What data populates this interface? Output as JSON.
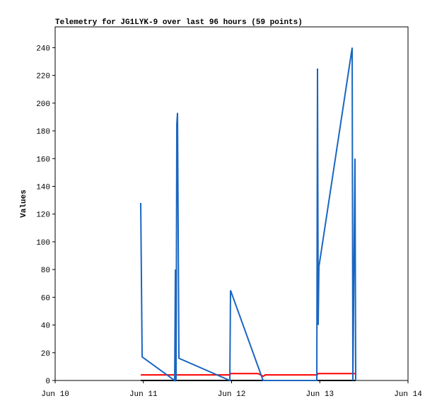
{
  "chart_data": {
    "type": "line",
    "title": "Telemetry for JG1LYK-9 over last 96 hours (59 points)",
    "y_label": "Values",
    "xlim": [
      0,
      4
    ],
    "xticks": [
      {
        "value": 0,
        "label": "Jun 10"
      },
      {
        "value": 1,
        "label": "Jun 11"
      },
      {
        "value": 2,
        "label": "Jun 12"
      },
      {
        "value": 3,
        "label": "Jun 13"
      },
      {
        "value": 4,
        "label": "Jun 14"
      }
    ],
    "ylim": [
      0,
      255
    ],
    "yticks": [
      0,
      20,
      40,
      60,
      80,
      100,
      120,
      140,
      160,
      180,
      200,
      220,
      240
    ],
    "series": [
      {
        "color": "#000000",
        "x": [
          0.97,
          3.407
        ],
        "values": [
          0,
          0
        ]
      },
      {
        "color": "#ff0000",
        "x": [
          0.97,
          1.98,
          1.99,
          2.3,
          2.33,
          2.36,
          2.38,
          2.97,
          2.98,
          3.37,
          3.4
        ],
        "values": [
          4,
          4,
          5,
          5,
          4,
          3,
          4,
          4,
          5,
          5,
          5
        ]
      },
      {
        "color": "#1a66c0",
        "x": [
          0.97,
          0.986,
          1.355,
          1.363,
          1.371,
          1.379,
          1.387,
          1.395,
          1.403,
          1.98,
          1.988,
          2.357,
          2.966,
          2.974,
          2.982,
          2.99,
          3.367,
          3.375,
          3.399,
          3.407
        ],
        "values": [
          128,
          17,
          0,
          80,
          0,
          185,
          193,
          105,
          16,
          0,
          65,
          0,
          0,
          225,
          40,
          82,
          240,
          0,
          160,
          0
        ]
      }
    ]
  }
}
